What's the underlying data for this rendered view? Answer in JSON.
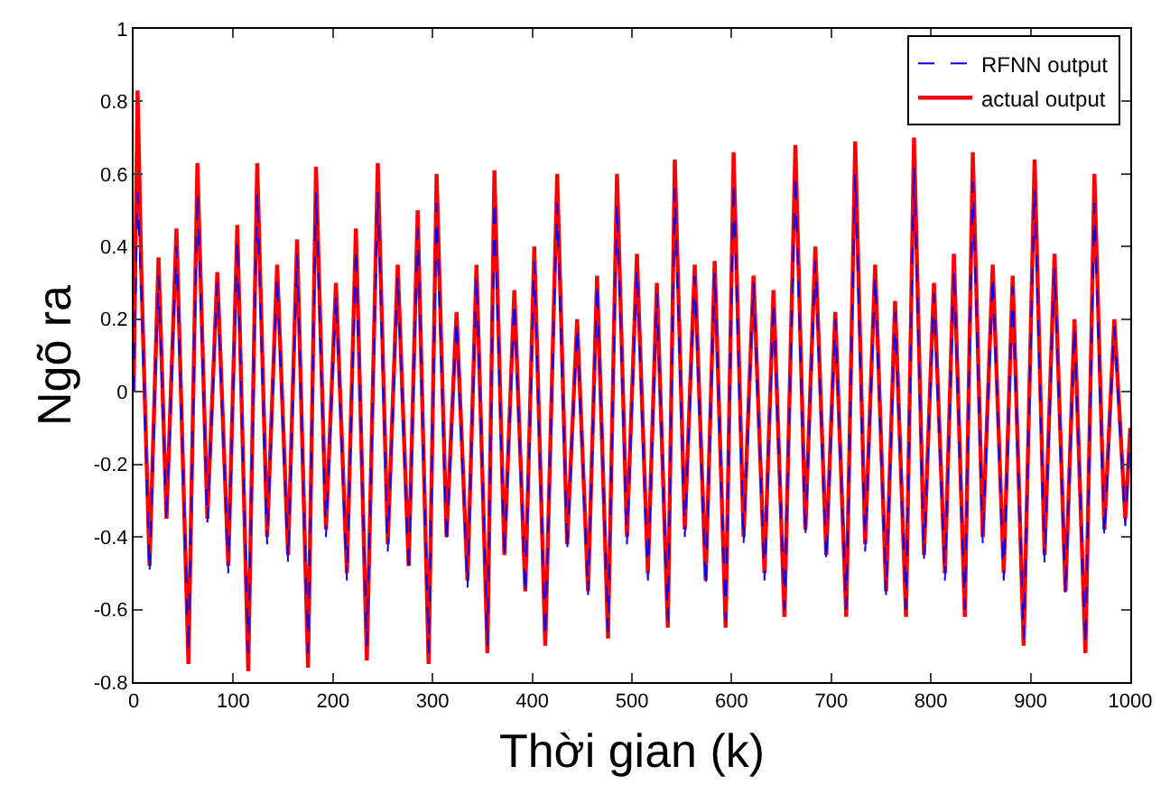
{
  "chart_data": {
    "type": "line",
    "xlabel": "Thời gian (k)",
    "ylabel": "Ngõ ra",
    "xlim": [
      0,
      1000
    ],
    "ylim": [
      -0.8,
      1
    ],
    "xticks": [
      0,
      100,
      200,
      300,
      400,
      500,
      600,
      700,
      800,
      900,
      1000
    ],
    "yticks": [
      -0.8,
      -0.6,
      -0.4,
      -0.2,
      0,
      0.2,
      0.4,
      0.6,
      0.8,
      1
    ],
    "grid": false,
    "legend": "top right",
    "marker": "none",
    "x": [
      0,
      4,
      8,
      16,
      25,
      33,
      43,
      55,
      64,
      74,
      84,
      95,
      104,
      115,
      124,
      134,
      144,
      155,
      164,
      175,
      183,
      193,
      203,
      214,
      223,
      234,
      245,
      255,
      265,
      276,
      285,
      296,
      304,
      314,
      324,
      335,
      344,
      355,
      362,
      372,
      382,
      393,
      402,
      413,
      425,
      435,
      445,
      456,
      465,
      476,
      485,
      495,
      505,
      516,
      525,
      536,
      543,
      553,
      563,
      574,
      583,
      594,
      602,
      612,
      622,
      633,
      642,
      653,
      664,
      674,
      684,
      695,
      704,
      715,
      724,
      734,
      744,
      755,
      764,
      775,
      783,
      793,
      803,
      814,
      823,
      834,
      842,
      852,
      862,
      873,
      882,
      893,
      904,
      914,
      924,
      935,
      944,
      955,
      964,
      974,
      984,
      995,
      1000
    ],
    "series": [
      {
        "name": "actual output",
        "color": "#ff0000",
        "line_style": "solid",
        "values": [
          0,
          0.83,
          0.3,
          -0.48,
          0.37,
          -0.35,
          0.45,
          -0.75,
          0.63,
          -0.35,
          0.33,
          -0.48,
          0.46,
          -0.77,
          0.63,
          -0.4,
          0.35,
          -0.45,
          0.42,
          -0.76,
          0.62,
          -0.38,
          0.3,
          -0.5,
          0.45,
          -0.74,
          0.63,
          -0.42,
          0.35,
          -0.48,
          0.5,
          -0.75,
          0.6,
          -0.4,
          0.22,
          -0.52,
          0.35,
          -0.72,
          0.61,
          -0.45,
          0.28,
          -0.55,
          0.4,
          -0.7,
          0.6,
          -0.42,
          0.2,
          -0.55,
          0.32,
          -0.68,
          0.6,
          -0.4,
          0.38,
          -0.5,
          0.3,
          -0.65,
          0.64,
          -0.38,
          0.35,
          -0.52,
          0.36,
          -0.65,
          0.66,
          -0.4,
          0.32,
          -0.5,
          0.28,
          -0.62,
          0.68,
          -0.38,
          0.4,
          -0.45,
          0.22,
          -0.62,
          0.69,
          -0.42,
          0.35,
          -0.55,
          0.25,
          -0.62,
          0.7,
          -0.45,
          0.3,
          -0.5,
          0.38,
          -0.62,
          0.66,
          -0.4,
          0.35,
          -0.5,
          0.32,
          -0.7,
          0.64,
          -0.45,
          0.38,
          -0.55,
          0.2,
          -0.72,
          0.6,
          -0.38,
          0.2,
          -0.35,
          -0.1
        ]
      },
      {
        "name": "RFNN output",
        "color": "#0000ff",
        "line_style": "dashed",
        "values": [
          0,
          0.55,
          0.25,
          -0.5,
          0.32,
          -0.36,
          0.4,
          -0.72,
          0.55,
          -0.36,
          0.3,
          -0.5,
          0.42,
          -0.72,
          0.55,
          -0.42,
          0.32,
          -0.47,
          0.38,
          -0.72,
          0.55,
          -0.4,
          0.27,
          -0.52,
          0.4,
          -0.7,
          0.55,
          -0.44,
          0.32,
          -0.5,
          0.45,
          -0.72,
          0.52,
          -0.42,
          0.2,
          -0.54,
          0.32,
          -0.7,
          0.53,
          -0.46,
          0.25,
          -0.56,
          0.36,
          -0.68,
          0.52,
          -0.44,
          0.18,
          -0.56,
          0.3,
          -0.66,
          0.52,
          -0.42,
          0.34,
          -0.52,
          0.27,
          -0.63,
          0.56,
          -0.4,
          0.32,
          -0.54,
          0.33,
          -0.63,
          0.58,
          -0.42,
          0.3,
          -0.52,
          0.25,
          -0.6,
          0.6,
          -0.4,
          0.36,
          -0.47,
          0.2,
          -0.6,
          0.6,
          -0.44,
          0.32,
          -0.56,
          0.22,
          -0.6,
          0.62,
          -0.46,
          0.27,
          -0.52,
          0.34,
          -0.6,
          0.58,
          -0.42,
          0.32,
          -0.52,
          0.29,
          -0.68,
          0.56,
          -0.47,
          0.34,
          -0.56,
          0.18,
          -0.7,
          0.52,
          -0.4,
          0.18,
          -0.37,
          -0.1
        ]
      }
    ]
  }
}
